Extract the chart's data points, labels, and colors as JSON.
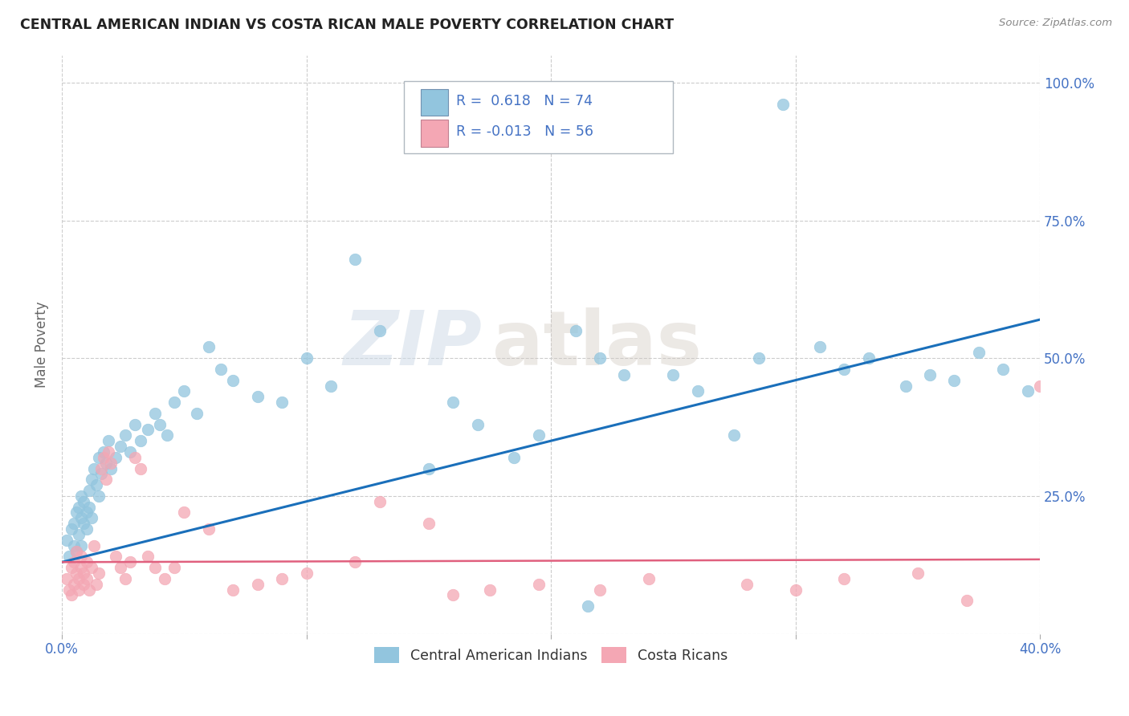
{
  "title": "CENTRAL AMERICAN INDIAN VS COSTA RICAN MALE POVERTY CORRELATION CHART",
  "source": "Source: ZipAtlas.com",
  "ylabel": "Male Poverty",
  "x_min": 0.0,
  "x_max": 0.4,
  "y_min": 0.0,
  "y_max": 1.05,
  "legend_r1_text": "R =  0.618   N = 74",
  "legend_r2_text": "R = -0.013   N = 56",
  "blue_color": "#92c5de",
  "pink_color": "#f4a7b4",
  "line_blue": "#1a6fba",
  "line_pink": "#e0607e",
  "watermark_zip": "ZIP",
  "watermark_atlas": "atlas",
  "legend_entries": [
    "Central American Indians",
    "Costa Ricans"
  ],
  "blue_scatter_x": [
    0.002,
    0.003,
    0.004,
    0.005,
    0.005,
    0.006,
    0.006,
    0.007,
    0.007,
    0.008,
    0.008,
    0.008,
    0.009,
    0.009,
    0.01,
    0.01,
    0.011,
    0.011,
    0.012,
    0.012,
    0.013,
    0.014,
    0.015,
    0.015,
    0.016,
    0.017,
    0.018,
    0.019,
    0.02,
    0.022,
    0.024,
    0.026,
    0.028,
    0.03,
    0.032,
    0.035,
    0.038,
    0.04,
    0.043,
    0.046,
    0.05,
    0.055,
    0.06,
    0.065,
    0.07,
    0.08,
    0.09,
    0.1,
    0.11,
    0.12,
    0.13,
    0.15,
    0.16,
    0.17,
    0.185,
    0.195,
    0.21,
    0.22,
    0.215,
    0.23,
    0.25,
    0.26,
    0.275,
    0.285,
    0.295,
    0.31,
    0.32,
    0.33,
    0.345,
    0.355,
    0.365,
    0.375,
    0.385,
    0.395
  ],
  "blue_scatter_y": [
    0.17,
    0.14,
    0.19,
    0.2,
    0.16,
    0.22,
    0.15,
    0.18,
    0.23,
    0.21,
    0.16,
    0.25,
    0.2,
    0.24,
    0.22,
    0.19,
    0.26,
    0.23,
    0.28,
    0.21,
    0.3,
    0.27,
    0.32,
    0.25,
    0.29,
    0.33,
    0.31,
    0.35,
    0.3,
    0.32,
    0.34,
    0.36,
    0.33,
    0.38,
    0.35,
    0.37,
    0.4,
    0.38,
    0.36,
    0.42,
    0.44,
    0.4,
    0.52,
    0.48,
    0.46,
    0.43,
    0.42,
    0.5,
    0.45,
    0.68,
    0.55,
    0.3,
    0.42,
    0.38,
    0.32,
    0.36,
    0.55,
    0.5,
    0.05,
    0.47,
    0.47,
    0.44,
    0.36,
    0.5,
    0.96,
    0.52,
    0.48,
    0.5,
    0.45,
    0.47,
    0.46,
    0.51,
    0.48,
    0.44
  ],
  "pink_scatter_x": [
    0.002,
    0.003,
    0.004,
    0.004,
    0.005,
    0.005,
    0.006,
    0.006,
    0.007,
    0.007,
    0.008,
    0.008,
    0.009,
    0.009,
    0.01,
    0.01,
    0.011,
    0.012,
    0.013,
    0.014,
    0.015,
    0.016,
    0.017,
    0.018,
    0.019,
    0.02,
    0.022,
    0.024,
    0.026,
    0.028,
    0.03,
    0.032,
    0.035,
    0.038,
    0.042,
    0.046,
    0.05,
    0.06,
    0.07,
    0.08,
    0.09,
    0.1,
    0.12,
    0.13,
    0.15,
    0.16,
    0.175,
    0.195,
    0.22,
    0.24,
    0.28,
    0.3,
    0.32,
    0.35,
    0.37,
    0.4
  ],
  "pink_scatter_y": [
    0.1,
    0.08,
    0.12,
    0.07,
    0.09,
    0.13,
    0.11,
    0.15,
    0.1,
    0.08,
    0.12,
    0.14,
    0.09,
    0.11,
    0.13,
    0.1,
    0.08,
    0.12,
    0.16,
    0.09,
    0.11,
    0.3,
    0.32,
    0.28,
    0.33,
    0.31,
    0.14,
    0.12,
    0.1,
    0.13,
    0.32,
    0.3,
    0.14,
    0.12,
    0.1,
    0.12,
    0.22,
    0.19,
    0.08,
    0.09,
    0.1,
    0.11,
    0.13,
    0.24,
    0.2,
    0.07,
    0.08,
    0.09,
    0.08,
    0.1,
    0.09,
    0.08,
    0.1,
    0.11,
    0.06,
    0.45
  ],
  "blue_line_x": [
    0.0,
    0.4
  ],
  "blue_line_y": [
    0.13,
    0.57
  ],
  "pink_line_x": [
    0.0,
    0.4
  ],
  "pink_line_y": [
    0.13,
    0.135
  ],
  "background_color": "#ffffff",
  "grid_color": "#cccccc",
  "tick_color": "#4472c4",
  "title_color": "#222222",
  "source_color": "#888888",
  "ylabel_color": "#666666"
}
